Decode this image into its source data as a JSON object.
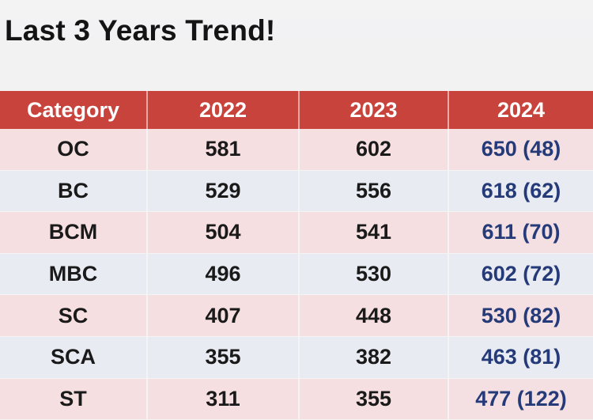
{
  "title": "Last 3 Years Trend!",
  "chart_data": {
    "type": "table",
    "columns": [
      "Category",
      "2022",
      "2023",
      "2024"
    ],
    "rows": [
      {
        "category": "OC",
        "y2022": "581",
        "y2023": "602",
        "y2024": "650 (48)"
      },
      {
        "category": "BC",
        "y2022": "529",
        "y2023": "556",
        "y2024": "618 (62)"
      },
      {
        "category": "BCM",
        "y2022": "504",
        "y2023": "541",
        "y2024": "611 (70)"
      },
      {
        "category": "MBC",
        "y2022": "496",
        "y2023": "530",
        "y2024": "602 (72)"
      },
      {
        "category": "SC",
        "y2022": "407",
        "y2023": "448",
        "y2024": "530 (82)"
      },
      {
        "category": "SCA",
        "y2022": "355",
        "y2023": "382",
        "y2024": "463 (81)"
      },
      {
        "category": "ST",
        "y2022": "311",
        "y2023": "355",
        "y2024": "477 (122)"
      }
    ]
  },
  "colors": {
    "header_bg": "#c8433b",
    "header_text": "#ffffff",
    "row_pink": "#f6dfe0",
    "row_blue": "#e8ebf1",
    "value_2024_text": "#253a78"
  }
}
